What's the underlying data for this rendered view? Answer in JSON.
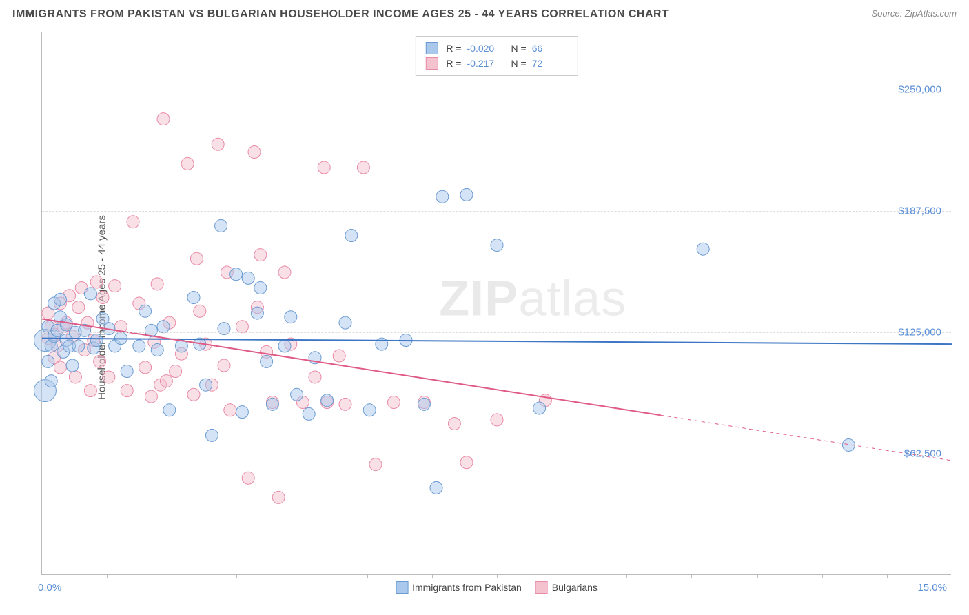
{
  "title": "IMMIGRANTS FROM PAKISTAN VS BULGARIAN HOUSEHOLDER INCOME AGES 25 - 44 YEARS CORRELATION CHART",
  "source": "Source: ZipAtlas.com",
  "watermark_a": "ZIP",
  "watermark_b": "atlas",
  "chart": {
    "type": "scatter",
    "xlabel": "",
    "ylabel": "Householder Income Ages 25 - 44 years",
    "xlim": [
      0.0,
      15.0
    ],
    "ylim": [
      0,
      280000
    ],
    "x_unit": "%",
    "xlim_labels": [
      "0.0%",
      "15.0%"
    ],
    "y_ticks": [
      62500,
      125000,
      187500,
      250000
    ],
    "y_tick_labels": [
      "$62,500",
      "$125,000",
      "$187,500",
      "$250,000"
    ],
    "x_minor_ticks": [
      1.07,
      2.14,
      3.21,
      4.29,
      5.36,
      6.43,
      7.5,
      8.57,
      9.64,
      10.71,
      11.79,
      12.86,
      13.93
    ],
    "background_color": "#ffffff",
    "grid_color": "#dddddd",
    "axis_color": "#bbbbbb",
    "label_fontsize": 15,
    "tick_color": "#5b8fd6",
    "marker_radius": 9,
    "marker_large_radius": 16,
    "marker_opacity": 0.5,
    "series": [
      {
        "name": "Immigrants from Pakistan",
        "color_fill": "#a9c8ec",
        "color_stroke": "#6b9bd1",
        "R": "-0.020",
        "N": "66",
        "trend": {
          "x1": 0.0,
          "y1": 122000,
          "x2": 15.0,
          "y2": 119000,
          "solid_until_x": 15.0,
          "color": "#3d76c5",
          "width": 2
        },
        "points": [
          [
            0.05,
            95000
          ],
          [
            0.05,
            121000
          ],
          [
            0.1,
            110000
          ],
          [
            0.1,
            128000
          ],
          [
            0.15,
            100000
          ],
          [
            0.15,
            118000
          ],
          [
            0.2,
            123000
          ],
          [
            0.2,
            140000
          ],
          [
            0.25,
            126000
          ],
          [
            0.3,
            133000
          ],
          [
            0.3,
            142000
          ],
          [
            0.35,
            115000
          ],
          [
            0.4,
            121000
          ],
          [
            0.4,
            129000
          ],
          [
            0.45,
            118000
          ],
          [
            0.5,
            108000
          ],
          [
            0.55,
            125000
          ],
          [
            0.6,
            118000
          ],
          [
            0.7,
            126000
          ],
          [
            0.8,
            145000
          ],
          [
            0.85,
            117000
          ],
          [
            0.9,
            121000
          ],
          [
            1.0,
            132000
          ],
          [
            1.1,
            127000
          ],
          [
            1.2,
            118000
          ],
          [
            1.3,
            122000
          ],
          [
            1.4,
            105000
          ],
          [
            1.6,
            118000
          ],
          [
            1.7,
            136000
          ],
          [
            1.8,
            126000
          ],
          [
            1.9,
            116000
          ],
          [
            2.0,
            128000
          ],
          [
            2.1,
            85000
          ],
          [
            2.3,
            118000
          ],
          [
            2.5,
            143000
          ],
          [
            2.6,
            119000
          ],
          [
            2.7,
            98000
          ],
          [
            2.8,
            72000
          ],
          [
            2.95,
            180000
          ],
          [
            3.0,
            127000
          ],
          [
            3.2,
            155000
          ],
          [
            3.3,
            84000
          ],
          [
            3.4,
            153000
          ],
          [
            3.55,
            135000
          ],
          [
            3.6,
            148000
          ],
          [
            3.7,
            110000
          ],
          [
            3.8,
            88000
          ],
          [
            4.0,
            118000
          ],
          [
            4.1,
            133000
          ],
          [
            4.2,
            93000
          ],
          [
            4.4,
            83000
          ],
          [
            4.5,
            112000
          ],
          [
            4.7,
            90000
          ],
          [
            5.0,
            130000
          ],
          [
            5.1,
            175000
          ],
          [
            5.4,
            85000
          ],
          [
            5.6,
            119000
          ],
          [
            6.0,
            121000
          ],
          [
            6.3,
            88000
          ],
          [
            6.5,
            45000
          ],
          [
            6.6,
            195000
          ],
          [
            7.0,
            196000
          ],
          [
            7.5,
            170000
          ],
          [
            8.2,
            86000
          ],
          [
            10.9,
            168000
          ],
          [
            13.3,
            67000
          ]
        ]
      },
      {
        "name": "Bulgarians",
        "color_fill": "#f4c2cf",
        "color_stroke": "#e98aa6",
        "R": "-0.217",
        "N": "72",
        "trend": {
          "x1": 0.0,
          "y1": 132000,
          "x2": 15.0,
          "y2": 59000,
          "solid_until_x": 10.2,
          "color": "#e05a86",
          "width": 2
        },
        "points": [
          [
            0.1,
            122000
          ],
          [
            0.1,
            135000
          ],
          [
            0.15,
            128000
          ],
          [
            0.2,
            112000
          ],
          [
            0.2,
            124000
          ],
          [
            0.25,
            118000
          ],
          [
            0.3,
            140000
          ],
          [
            0.3,
            107000
          ],
          [
            0.35,
            128000
          ],
          [
            0.4,
            130000
          ],
          [
            0.45,
            144000
          ],
          [
            0.5,
            123000
          ],
          [
            0.55,
            102000
          ],
          [
            0.6,
            138000
          ],
          [
            0.65,
            148000
          ],
          [
            0.7,
            116000
          ],
          [
            0.75,
            130000
          ],
          [
            0.8,
            95000
          ],
          [
            0.85,
            121000
          ],
          [
            0.9,
            151000
          ],
          [
            0.95,
            110000
          ],
          [
            1.0,
            143000
          ],
          [
            1.1,
            102000
          ],
          [
            1.2,
            149000
          ],
          [
            1.3,
            128000
          ],
          [
            1.4,
            95000
          ],
          [
            1.5,
            182000
          ],
          [
            1.6,
            140000
          ],
          [
            1.7,
            107000
          ],
          [
            1.8,
            92000
          ],
          [
            1.85,
            120000
          ],
          [
            1.9,
            150000
          ],
          [
            1.95,
            98000
          ],
          [
            2.0,
            235000
          ],
          [
            2.05,
            100000
          ],
          [
            2.1,
            130000
          ],
          [
            2.2,
            105000
          ],
          [
            2.3,
            114000
          ],
          [
            2.4,
            212000
          ],
          [
            2.5,
            93000
          ],
          [
            2.55,
            163000
          ],
          [
            2.6,
            136000
          ],
          [
            2.7,
            119000
          ],
          [
            2.8,
            98000
          ],
          [
            2.9,
            222000
          ],
          [
            3.0,
            108000
          ],
          [
            3.05,
            156000
          ],
          [
            3.1,
            85000
          ],
          [
            3.3,
            128000
          ],
          [
            3.4,
            50000
          ],
          [
            3.5,
            218000
          ],
          [
            3.55,
            138000
          ],
          [
            3.6,
            165000
          ],
          [
            3.7,
            115000
          ],
          [
            3.8,
            89000
          ],
          [
            3.9,
            40000
          ],
          [
            4.0,
            156000
          ],
          [
            4.1,
            119000
          ],
          [
            4.3,
            89000
          ],
          [
            4.5,
            102000
          ],
          [
            4.65,
            210000
          ],
          [
            4.7,
            89000
          ],
          [
            4.9,
            113000
          ],
          [
            5.0,
            88000
          ],
          [
            5.3,
            210000
          ],
          [
            5.5,
            57000
          ],
          [
            5.8,
            89000
          ],
          [
            6.3,
            89000
          ],
          [
            6.8,
            78000
          ],
          [
            7.0,
            58000
          ],
          [
            7.5,
            80000
          ],
          [
            8.3,
            90000
          ]
        ]
      }
    ],
    "legend_top_position": "top-center",
    "legend_bottom_position": "below-axis-center"
  }
}
